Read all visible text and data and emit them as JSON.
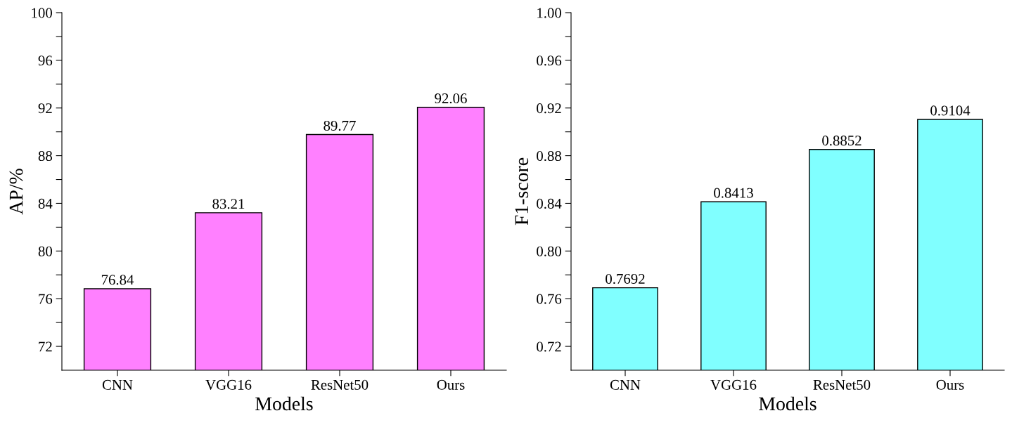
{
  "chart_data": [
    {
      "type": "bar",
      "xlabel": "Models",
      "ylabel": "AP/%",
      "categories": [
        "CNN",
        "VGG16",
        "ResNet50",
        "Ours"
      ],
      "values": [
        76.84,
        83.21,
        89.77,
        92.06
      ],
      "color": "#ff80ff",
      "data_labels": true,
      "ylim": [
        70,
        100
      ],
      "yticks": [
        72,
        {
          "value": 74,
          "label": null
        },
        76,
        {
          "value": 78,
          "label": null
        },
        80,
        {
          "value": 82,
          "label": null
        },
        84,
        {
          "value": 86,
          "label": null
        },
        88,
        {
          "value": 90,
          "label": null
        },
        92,
        {
          "value": 94,
          "label": null
        },
        96,
        {
          "value": 98,
          "label": null
        },
        100
      ],
      "grid": false,
      "legend": false
    },
    {
      "type": "bar",
      "xlabel": "Models",
      "ylabel": "F1-score",
      "categories": [
        "CNN",
        "VGG16",
        "ResNet50",
        "Ours"
      ],
      "values": [
        0.7692,
        0.8413,
        0.8852,
        0.9104
      ],
      "color": "#80ffff",
      "data_labels": true,
      "ylim": [
        0.7,
        1.0
      ],
      "yticks": [
        {
          "value": 0.72,
          "label": "0.72"
        },
        {
          "value": 0.74,
          "label": null
        },
        {
          "value": 0.76,
          "label": "0.76"
        },
        {
          "value": 0.78,
          "label": null
        },
        {
          "value": 0.8,
          "label": "0.80"
        },
        {
          "value": 0.82,
          "label": null
        },
        {
          "value": 0.84,
          "label": "0.84"
        },
        {
          "value": 0.86,
          "label": null
        },
        {
          "value": 0.88,
          "label": "0.88"
        },
        {
          "value": 0.9,
          "label": null
        },
        {
          "value": 0.92,
          "label": "0.92"
        },
        {
          "value": 0.94,
          "label": null
        },
        {
          "value": 0.96,
          "label": "0.96"
        },
        {
          "value": 0.98,
          "label": null
        },
        {
          "value": 1.0,
          "label": "1.00"
        }
      ],
      "grid": false,
      "legend": false
    }
  ]
}
